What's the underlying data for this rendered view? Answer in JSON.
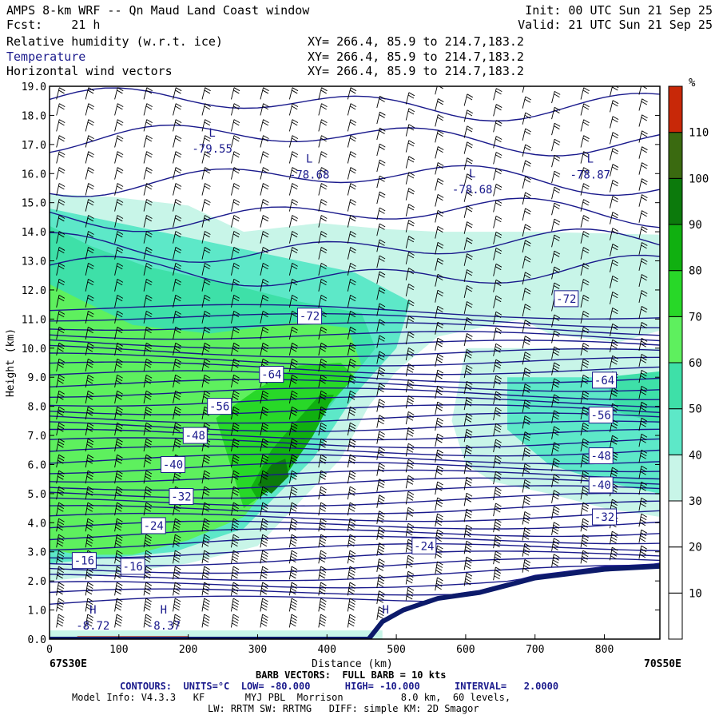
{
  "header": {
    "title": "AMPS 8-km WRF -- Qn Maud Land Coast window",
    "fcst": "Fcst:    21 h",
    "init": "Init: 00 UTC Sun 21 Sep 25",
    "valid": "Valid: 21 UTC Sun 21 Sep 25",
    "fields": [
      {
        "name": "Relative humidity (w.r.t. ice)",
        "xy": "XY= 266.4, 85.9 to 214.7,183.2",
        "color": "#000000"
      },
      {
        "name": "Temperature",
        "xy": "XY= 266.4, 85.9 to 214.7,183.2",
        "color": "#1a1a8c"
      },
      {
        "name": "Horizontal wind vectors",
        "xy": "XY= 266.4, 85.9 to 214.7,183.2",
        "color": "#000000"
      }
    ]
  },
  "chart_data": {
    "type": "heatmap",
    "xlabel": "Distance (km)",
    "ylabel": "Height (km)",
    "xlim": [
      0,
      880
    ],
    "ylim": [
      0,
      19
    ],
    "x_ticks": [
      0,
      100,
      200,
      300,
      400,
      500,
      600,
      700,
      800
    ],
    "y_ticks": [
      "0.0",
      "1.0",
      "2.0",
      "3.0",
      "4.0",
      "5.0",
      "6.0",
      "7.0",
      "8.0",
      "9.0",
      "10.0",
      "11.0",
      "12.0",
      "13.0",
      "14.0",
      "15.0",
      "16.0",
      "17.0",
      "18.0",
      "19.0"
    ],
    "left_endpoint": "67S30E",
    "right_endpoint": "70S50E",
    "colorbar": {
      "unit": "%",
      "levels": [
        "10",
        "20",
        "30",
        "40",
        "50",
        "60",
        "70",
        "80",
        "90",
        "100",
        "110"
      ],
      "colors": [
        "#ffffff",
        "#ffffff",
        "#ffffff",
        "#c8f5e8",
        "#5de8c8",
        "#3ee0a8",
        "#5ef05e",
        "#28d828",
        "#10b010",
        "#0c7a0c",
        "#3a6a10",
        "#c82808"
      ]
    },
    "rh_regions": [
      {
        "rh": 35,
        "points": [
          [
            0,
            15.3
          ],
          [
            90,
            15.2
          ],
          [
            200,
            14.9
          ],
          [
            280,
            14.0
          ],
          [
            390,
            14.3
          ],
          [
            480,
            14.1
          ],
          [
            560,
            14.0
          ],
          [
            700,
            14.0
          ],
          [
            880,
            13.9
          ],
          [
            880,
            10.6
          ],
          [
            820,
            10.2
          ],
          [
            720,
            10.5
          ],
          [
            680,
            11.0
          ],
          [
            560,
            10.4
          ],
          [
            500,
            9.2
          ],
          [
            460,
            8.0
          ],
          [
            420,
            6.2
          ],
          [
            300,
            3.2
          ],
          [
            200,
            2.6
          ],
          [
            80,
            2.2
          ],
          [
            0,
            2.0
          ]
        ]
      },
      {
        "rh": 35,
        "points": [
          [
            600,
            10.0
          ],
          [
            880,
            10.0
          ],
          [
            880,
            4.2
          ],
          [
            800,
            4.5
          ],
          [
            720,
            5.0
          ],
          [
            640,
            5.4
          ],
          [
            600,
            6.0
          ],
          [
            580,
            7.5
          ]
        ]
      },
      {
        "rh": 45,
        "points": [
          [
            0,
            14.8
          ],
          [
            80,
            14.4
          ],
          [
            160,
            14.0
          ],
          [
            280,
            13.4
          ],
          [
            360,
            13.0
          ],
          [
            440,
            12.6
          ],
          [
            520,
            11.6
          ],
          [
            500,
            10.0
          ],
          [
            440,
            8.4
          ],
          [
            380,
            6.2
          ],
          [
            280,
            3.8
          ],
          [
            180,
            3.0
          ],
          [
            90,
            2.8
          ],
          [
            0,
            2.6
          ]
        ]
      },
      {
        "rh": 45,
        "points": [
          [
            660,
            9.0
          ],
          [
            880,
            9.0
          ],
          [
            880,
            5.0
          ],
          [
            800,
            5.4
          ],
          [
            720,
            6.0
          ],
          [
            660,
            7.2
          ]
        ]
      },
      {
        "rh": 55,
        "points": [
          [
            0,
            14.2
          ],
          [
            60,
            13.5
          ],
          [
            140,
            12.8
          ],
          [
            260,
            12.2
          ],
          [
            360,
            11.6
          ],
          [
            450,
            11.2
          ],
          [
            470,
            10.0
          ],
          [
            430,
            8.8
          ],
          [
            360,
            6.6
          ],
          [
            300,
            5.0
          ],
          [
            240,
            4.0
          ],
          [
            150,
            3.2
          ],
          [
            60,
            3.0
          ],
          [
            0,
            3.0
          ]
        ]
      },
      {
        "rh": 55,
        "points": [
          [
            800,
            9.0
          ],
          [
            880,
            9.2
          ],
          [
            880,
            7.4
          ],
          [
            820,
            7.8
          ]
        ]
      },
      {
        "rh": 65,
        "points": [
          [
            0,
            12.2
          ],
          [
            50,
            11.6
          ],
          [
            120,
            10.8
          ],
          [
            230,
            10.5
          ],
          [
            360,
            10.9
          ],
          [
            430,
            10.7
          ],
          [
            450,
            9.4
          ],
          [
            420,
            8.6
          ],
          [
            360,
            7.0
          ],
          [
            320,
            5.4
          ],
          [
            280,
            4.2
          ],
          [
            200,
            3.4
          ],
          [
            120,
            2.9
          ],
          [
            40,
            2.9
          ],
          [
            0,
            3.1
          ]
        ]
      },
      {
        "rh": 75,
        "points": [
          [
            240,
            7.6
          ],
          [
            300,
            8.6
          ],
          [
            360,
            9.4
          ],
          [
            420,
            9.5
          ],
          [
            440,
            9.0
          ],
          [
            400,
            8.0
          ],
          [
            350,
            6.5
          ],
          [
            310,
            5.0
          ],
          [
            280,
            4.5
          ]
        ]
      },
      {
        "rh": 85,
        "points": [
          [
            290,
            5.2
          ],
          [
            320,
            6.5
          ],
          [
            360,
            7.6
          ],
          [
            390,
            8.4
          ],
          [
            410,
            8.4
          ],
          [
            380,
            7.0
          ],
          [
            340,
            5.6
          ],
          [
            300,
            4.8
          ]
        ]
      },
      {
        "rh": 95,
        "points": [
          [
            300,
            5.3
          ],
          [
            320,
            6.0
          ],
          [
            340,
            6.2
          ],
          [
            345,
            5.6
          ],
          [
            320,
            5.0
          ]
        ]
      },
      {
        "rh": 35,
        "points": [
          [
            0,
            0
          ],
          [
            480,
            0
          ],
          [
            480,
            0.3
          ],
          [
            0,
            0.3
          ]
        ]
      },
      {
        "rh": 115,
        "points": [
          [
            40,
            0
          ],
          [
            200,
            0
          ],
          [
            200,
            0.1
          ],
          [
            40,
            0.1
          ]
        ]
      }
    ],
    "terrain": [
      [
        0,
        0
      ],
      [
        460,
        0
      ],
      [
        480,
        0.6
      ],
      [
        510,
        1.0
      ],
      [
        560,
        1.4
      ],
      [
        620,
        1.6
      ],
      [
        700,
        2.1
      ],
      [
        800,
        2.4
      ],
      [
        880,
        2.5
      ]
    ],
    "temperature_contours": {
      "unit": "°C",
      "low": -80,
      "high": -10,
      "interval": 2,
      "labels": [
        {
          "text": "-72",
          "x": 375,
          "y": 11.1
        },
        {
          "text": "-72",
          "x": 745,
          "y": 11.7
        },
        {
          "text": "-64",
          "x": 320,
          "y": 9.1
        },
        {
          "text": "-64",
          "x": 800,
          "y": 8.9
        },
        {
          "text": "-56",
          "x": 245,
          "y": 8.0
        },
        {
          "text": "-56",
          "x": 795,
          "y": 7.7
        },
        {
          "text": "-48",
          "x": 210,
          "y": 7.0
        },
        {
          "text": "-48",
          "x": 795,
          "y": 6.3
        },
        {
          "text": "-40",
          "x": 178,
          "y": 6.0
        },
        {
          "text": "-40",
          "x": 795,
          "y": 5.3
        },
        {
          "text": "-32",
          "x": 190,
          "y": 4.9
        },
        {
          "text": "-32",
          "x": 800,
          "y": 4.2
        },
        {
          "text": "-24",
          "x": 150,
          "y": 3.9
        },
        {
          "text": "-24",
          "x": 540,
          "y": 3.2
        },
        {
          "text": "-16",
          "x": 50,
          "y": 2.7
        },
        {
          "text": "-16",
          "x": 120,
          "y": 2.5
        }
      ],
      "extrema": [
        {
          "type": "L",
          "value": "-79.55",
          "x": 200,
          "y": 17.0
        },
        {
          "type": "L",
          "value": "-78.68",
          "x": 340,
          "y": 16.1
        },
        {
          "type": "L",
          "value": "-78.68",
          "x": 575,
          "y": 15.6
        },
        {
          "type": "L",
          "value": "-78.87",
          "x": 745,
          "y": 16.1
        },
        {
          "type": "H",
          "value": "-8.72",
          "x": 28,
          "y": 0.6
        },
        {
          "type": "H",
          "value": "-8.37",
          "x": 130,
          "y": 0.6
        },
        {
          "type": "H",
          "value": "",
          "x": 450,
          "y": 0.6
        }
      ]
    }
  },
  "footer": {
    "barb_note": "BARB VECTORS:  FULL BARB = 10 kts",
    "contours_note": "CONTOURS:  UNITS=°C  LOW= -80.000      HIGH= -10.000      INTERVAL=   2.0000",
    "model_info": "Model Info: V4.3.3   KF       MYJ PBL  Morrison          8.0 km,  60 levels,",
    "model_info2": "LW: RRTM SW: RRTMG   DIFF: simple KM: 2D Smagor"
  }
}
